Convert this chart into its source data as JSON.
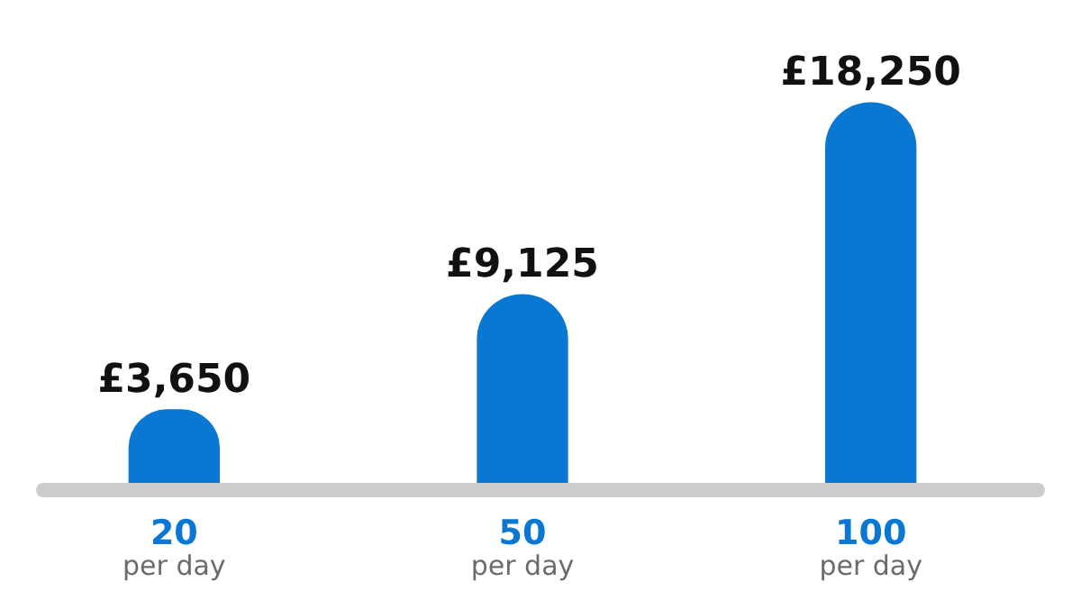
{
  "chart_data": {
    "type": "bar",
    "categories": [
      "20 per day",
      "50 per day",
      "100 per day"
    ],
    "values": [
      3650,
      9125,
      18250
    ],
    "color": "#0a78d2",
    "value_labels": [
      "£3,650",
      "£9,125",
      "£18,250"
    ]
  }
}
